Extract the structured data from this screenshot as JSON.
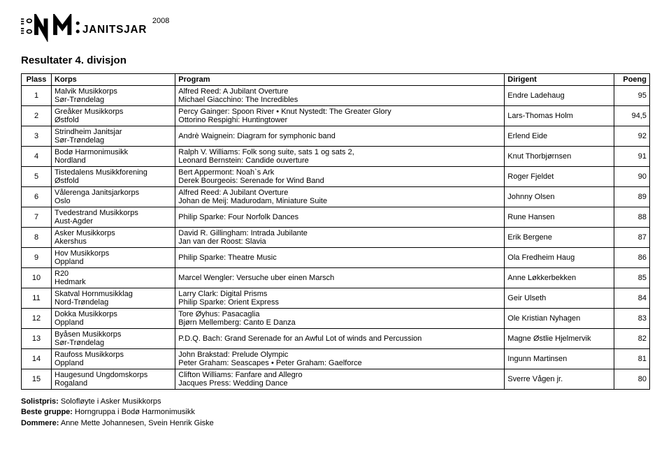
{
  "logo_text_main": "N M",
  "logo_text_sub": "JANITSJAR",
  "logo_year": "2008",
  "title": "Resultater 4. divisjon",
  "columns": [
    "Plass",
    "Korps",
    "Program",
    "Dirigent",
    "Poeng"
  ],
  "rows": [
    {
      "plass": "1",
      "korps1": "Malvik Musikkorps",
      "korps2": "Sør-Trøndelag",
      "prog1": "Alfred Reed: A Jubilant Overture",
      "prog2": "Michael Giacchino: The Incredibles",
      "dirigent": "Endre Ladehaug",
      "poeng": "95"
    },
    {
      "plass": "2",
      "korps1": "Greåker Musikkorps",
      "korps2": "Østfold",
      "prog1": "Percy Gainger: Spoon River • Knut Nystedt: The Greater Glory",
      "prog2": "Ottorino Respighi: Huntingtower",
      "dirigent": "Lars-Thomas Holm",
      "poeng": "94,5"
    },
    {
      "plass": "3",
      "korps1": "Strindheim Janitsjar",
      "korps2": "Sør-Trøndelag",
      "prog1": "Andrè Waignein: Diagram for symphonic band",
      "prog2": "",
      "dirigent": "Erlend Eide",
      "poeng": "92"
    },
    {
      "plass": "4",
      "korps1": "Bodø Harmonimusikk",
      "korps2": "Nordland",
      "prog1": "Ralph V. Williams: Folk song suite, sats 1 og sats 2,",
      "prog2": "Leonard Bernstein: Candide ouverture",
      "dirigent": "Knut Thorbjørnsen",
      "poeng": "91"
    },
    {
      "plass": "5",
      "korps1": "Tistedalens Musikkforening",
      "korps2": "Østfold",
      "prog1": "Bert Appermont: Noah`s Ark",
      "prog2": "Derek Bourgeois: Serenade for Wind Band",
      "dirigent": "Roger Fjeldet",
      "poeng": "90"
    },
    {
      "plass": "6",
      "korps1": "Vålerenga Janitsjarkorps",
      "korps2": "Oslo",
      "prog1": "Alfred Reed: A Jubilant Overture",
      "prog2": "Johan de Meij: Madurodam, Miniature Suite",
      "dirigent": "Johnny Olsen",
      "poeng": "89"
    },
    {
      "plass": "7",
      "korps1": "Tvedestrand Musikkorps",
      "korps2": "Aust-Agder",
      "prog1": "Philip Sparke: Four Norfolk Dances",
      "prog2": "",
      "dirigent": "Rune Hansen",
      "poeng": "88"
    },
    {
      "plass": "8",
      "korps1": "Asker Musikkorps",
      "korps2": "Akershus",
      "prog1": "David R. Gillingham: Intrada Jubilante",
      "prog2": "Jan van der Roost: Slavia",
      "dirigent": "Erik Bergene",
      "poeng": "87"
    },
    {
      "plass": "9",
      "korps1": "Hov Musikkorps",
      "korps2": "Oppland",
      "prog1": "Philip Sparke: Theatre Music",
      "prog2": "",
      "dirigent": "Ola Fredheim Haug",
      "poeng": "86"
    },
    {
      "plass": "10",
      "korps1": "R20",
      "korps2": "Hedmark",
      "prog1": "Marcel Wengler: Versuche uber einen Marsch",
      "prog2": "",
      "dirigent": "Anne Løkkerbekken",
      "poeng": "85"
    },
    {
      "plass": "11",
      "korps1": "Skatval Hornmusikklag",
      "korps2": "Nord-Trøndelag",
      "prog1": "Larry Clark: Digital Prisms",
      "prog2": "Philip Sparke: Orient Express",
      "dirigent": "Geir Ulseth",
      "poeng": "84"
    },
    {
      "plass": "12",
      "korps1": "Dokka Musikkorps",
      "korps2": "Oppland",
      "prog1": "Tore Øyhus: Pasacaglia",
      "prog2": "Bjørn Mellemberg: Canto E Danza",
      "dirigent": "Ole Kristian Nyhagen",
      "poeng": "83"
    },
    {
      "plass": "13",
      "korps1": "Byåsen Musikkorps",
      "korps2": "Sør-Trøndelag",
      "prog1": "P.D.Q. Bach: Grand Serenade for an Awful Lot of winds and Percussion",
      "prog2": "",
      "dirigent": "Magne Østlie Hjelmervik",
      "poeng": "82"
    },
    {
      "plass": "14",
      "korps1": "Raufoss Musikkorps",
      "korps2": "Oppland",
      "prog1": "John Brakstad: Prelude Olympic",
      "prog2": "Peter Graham: Seascapes • Peter Graham: Gaelforce",
      "dirigent": "Ingunn Martinsen",
      "poeng": "81"
    },
    {
      "plass": "15",
      "korps1": "Haugesund Ungdomskorps",
      "korps2": "Rogaland",
      "prog1": "Clifton Williams: Fanfare and Allegro",
      "prog2": "Jacques Press: Wedding Dance",
      "dirigent": "Sverre Vågen jr.",
      "poeng": "80"
    }
  ],
  "footer": {
    "solistpris_label": "Solistpris:",
    "solistpris_text": " Solofløyte i Asker Musikkorps",
    "bestegruppe_label": "Beste gruppe:",
    "bestegruppe_text": " Horngruppa i Bodø Harmonimusikk",
    "dommere_label": "Dommere:",
    "dommere_text": " Anne Mette Johannesen, Svein Henrik Giske"
  }
}
